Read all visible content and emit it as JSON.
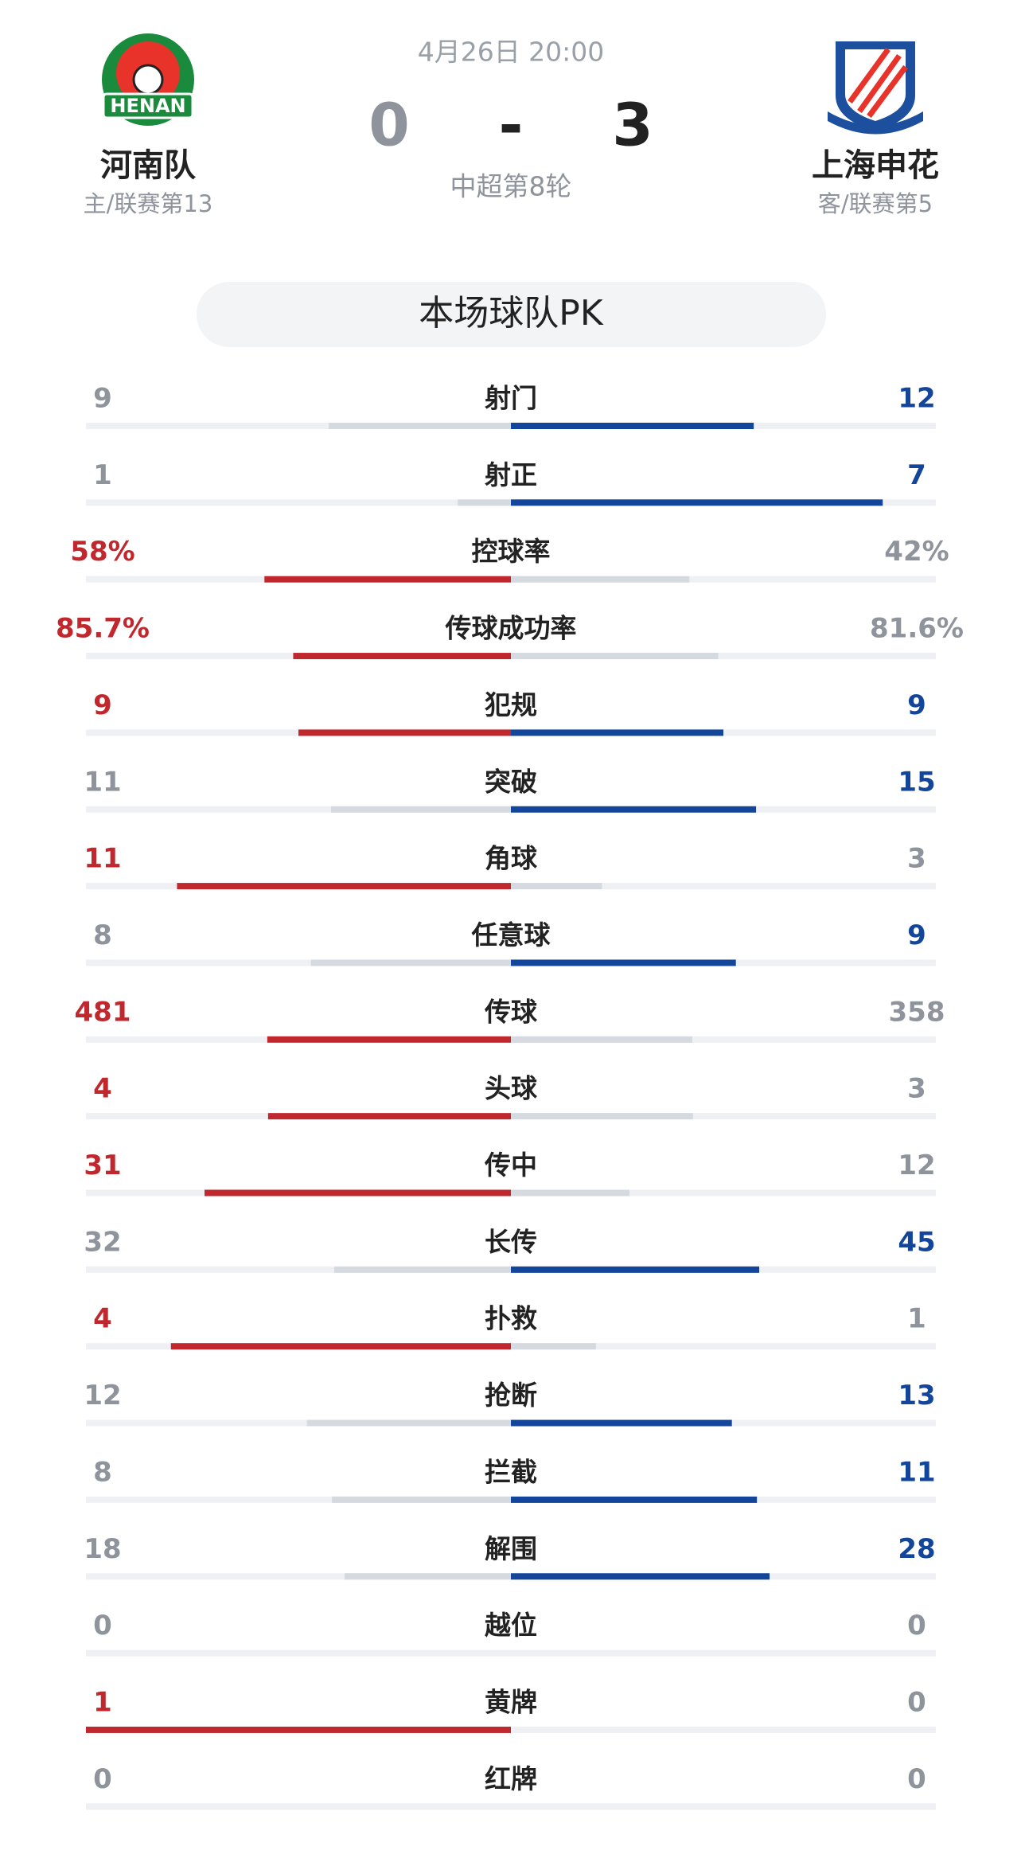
{
  "header": {
    "date": "4月26日 20:00",
    "round": "中超第8轮",
    "separator": "-",
    "home": {
      "name": "河南队",
      "info": "主/联赛第13",
      "score": 0,
      "logo_text": "HENAN"
    },
    "away": {
      "name": "上海申花",
      "info": "客/联赛第5",
      "score": 3
    }
  },
  "section_title": "本场球队PK",
  "stats": [
    {
      "label": "射门",
      "home": 9,
      "away": 12
    },
    {
      "label": "射正",
      "home": 1,
      "away": 7
    },
    {
      "label": "控球率",
      "home": 58,
      "away": 42,
      "home_label": "58%",
      "away_label": "42%"
    },
    {
      "label": "传球成功率",
      "home": 85.7,
      "away": 81.6,
      "home_label": "85.7%",
      "away_label": "81.6%"
    },
    {
      "label": "犯规",
      "home": 9,
      "away": 9
    },
    {
      "label": "突破",
      "home": 11,
      "away": 15
    },
    {
      "label": "角球",
      "home": 11,
      "away": 3
    },
    {
      "label": "任意球",
      "home": 8,
      "away": 9
    },
    {
      "label": "传球",
      "home": 481,
      "away": 358
    },
    {
      "label": "头球",
      "home": 4,
      "away": 3
    },
    {
      "label": "传中",
      "home": 31,
      "away": 12
    },
    {
      "label": "长传",
      "home": 32,
      "away": 45
    },
    {
      "label": "扑救",
      "home": 4,
      "away": 1
    },
    {
      "label": "抢断",
      "home": 12,
      "away": 13
    },
    {
      "label": "拦截",
      "home": 8,
      "away": 11
    },
    {
      "label": "解围",
      "home": 18,
      "away": 28
    },
    {
      "label": "越位",
      "home": 0,
      "away": 0
    },
    {
      "label": "黄牌",
      "home": 1,
      "away": 0
    },
    {
      "label": "红牌",
      "home": 0,
      "away": 0
    }
  ]
}
